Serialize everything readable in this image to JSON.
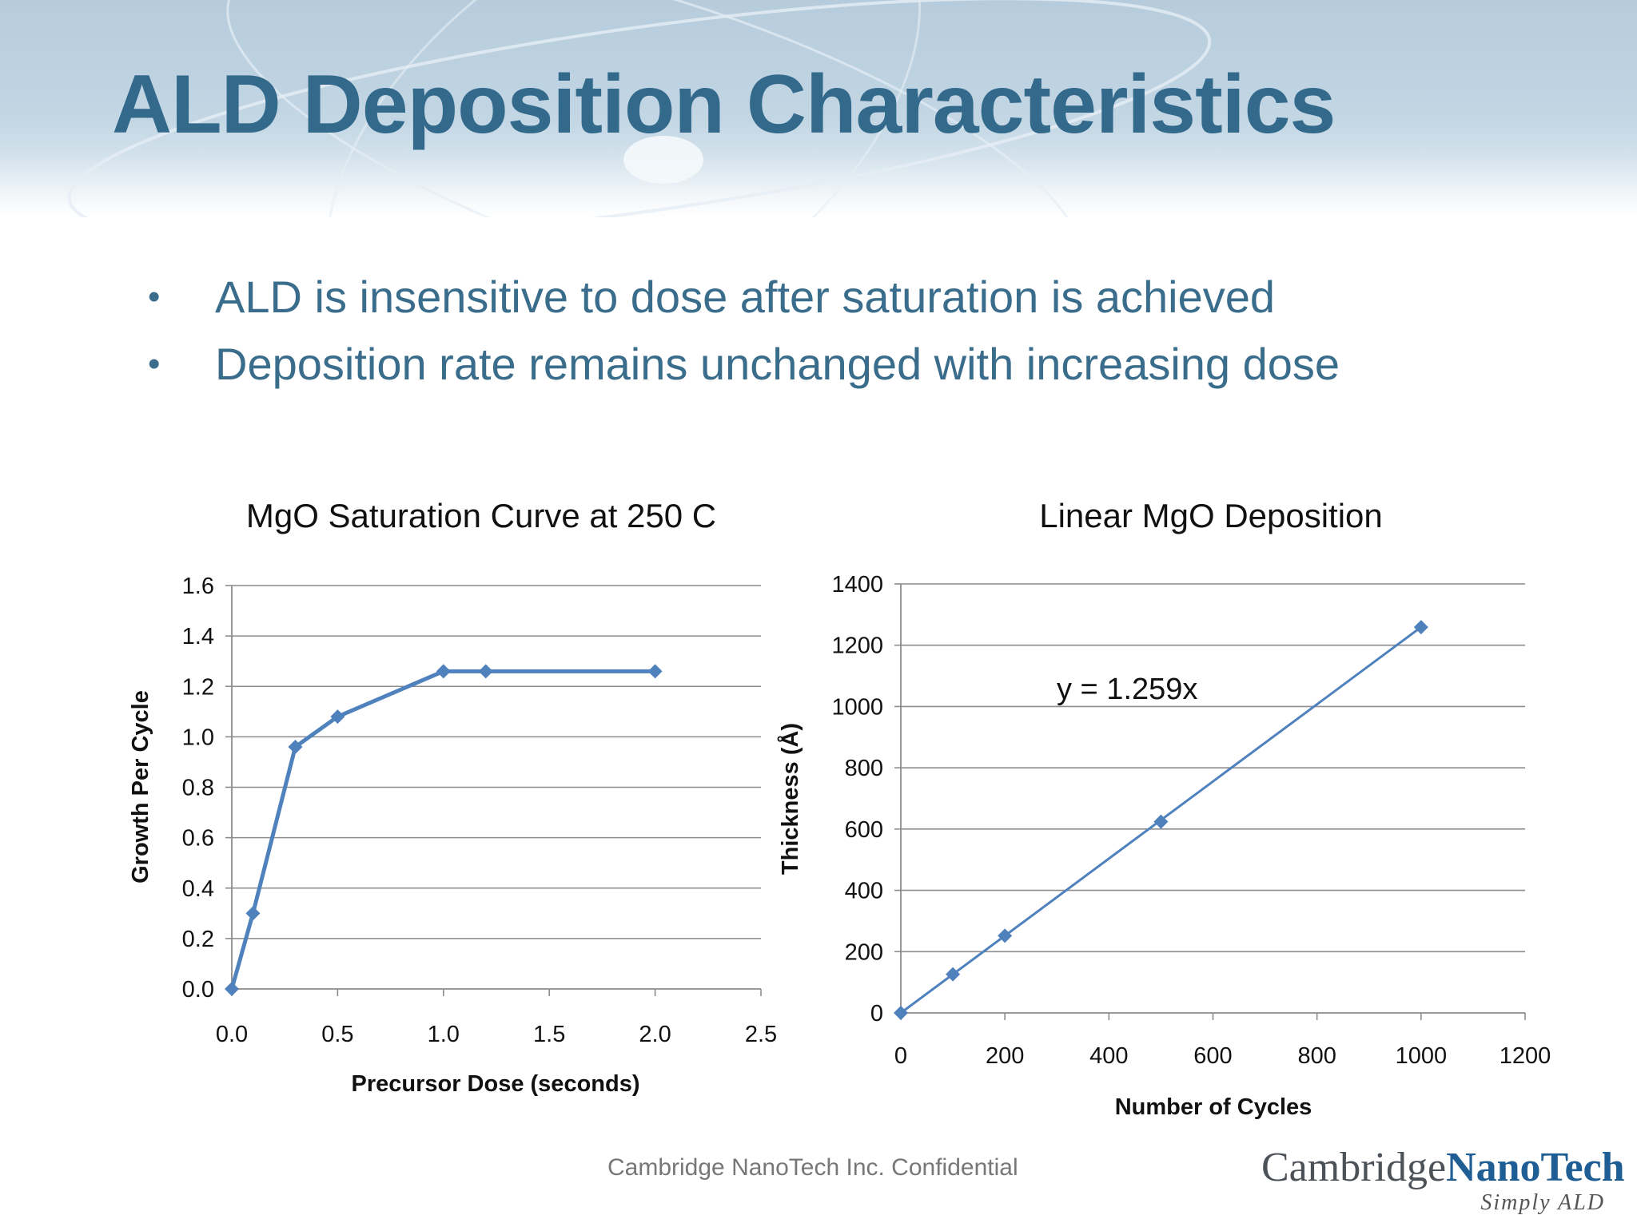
{
  "slide": {
    "title": "ALD Deposition Characteristics",
    "bullets": [
      "ALD is insensitive to dose after saturation is achieved",
      "Deposition rate remains unchanged with increasing dose"
    ],
    "footer": "Cambridge NanoTech Inc. Confidential",
    "logo": {
      "word_a": "Cambridge",
      "word_b": "NanoTech",
      "tagline": "Simply ALD"
    },
    "colors": {
      "title": "#33698b",
      "bullet_text": "#3a6d8c",
      "series": "#4f81bd"
    }
  },
  "chart_data": [
    {
      "type": "line",
      "title": "MgO Saturation Curve at 250  C",
      "xlabel": "Precursor Dose (seconds)",
      "ylabel": "Growth Per Cycle",
      "xlim": [
        0,
        2.5
      ],
      "ylim": [
        0,
        1.6
      ],
      "xticks": [
        "0.0",
        "0.5",
        "1.0",
        "1.5",
        "2.0",
        "2.5"
      ],
      "yticks": [
        "0.0",
        "0.2",
        "0.4",
        "0.6",
        "0.8",
        "1.0",
        "1.2",
        "1.4",
        "1.6"
      ],
      "grid": "horizontal",
      "marker": "diamond",
      "series": [
        {
          "x": [
            0,
            0.1,
            0.3,
            0.5,
            1.0,
            1.2,
            2.0
          ],
          "y": [
            0.0,
            0.3,
            0.96,
            1.08,
            1.26,
            1.26,
            1.26
          ]
        }
      ]
    },
    {
      "type": "scatter",
      "title": "Linear MgO Deposition",
      "xlabel": "Number of Cycles",
      "ylabel": "Thickness (Å)",
      "xlim": [
        0,
        1200
      ],
      "ylim": [
        0,
        1400
      ],
      "xticks": [
        "0",
        "200",
        "400",
        "600",
        "800",
        "1000",
        "1200"
      ],
      "yticks": [
        "0",
        "200",
        "400",
        "600",
        "800",
        "1000",
        "1200",
        "1400"
      ],
      "grid": "horizontal",
      "marker": "diamond",
      "trendline": {
        "equation": "y = 1.259x",
        "slope": 1.259,
        "x_range": [
          0,
          1000
        ]
      },
      "series": [
        {
          "x": [
            0,
            100,
            200,
            500,
            1000
          ],
          "y": [
            0,
            126,
            252,
            624,
            1259
          ]
        }
      ]
    }
  ]
}
